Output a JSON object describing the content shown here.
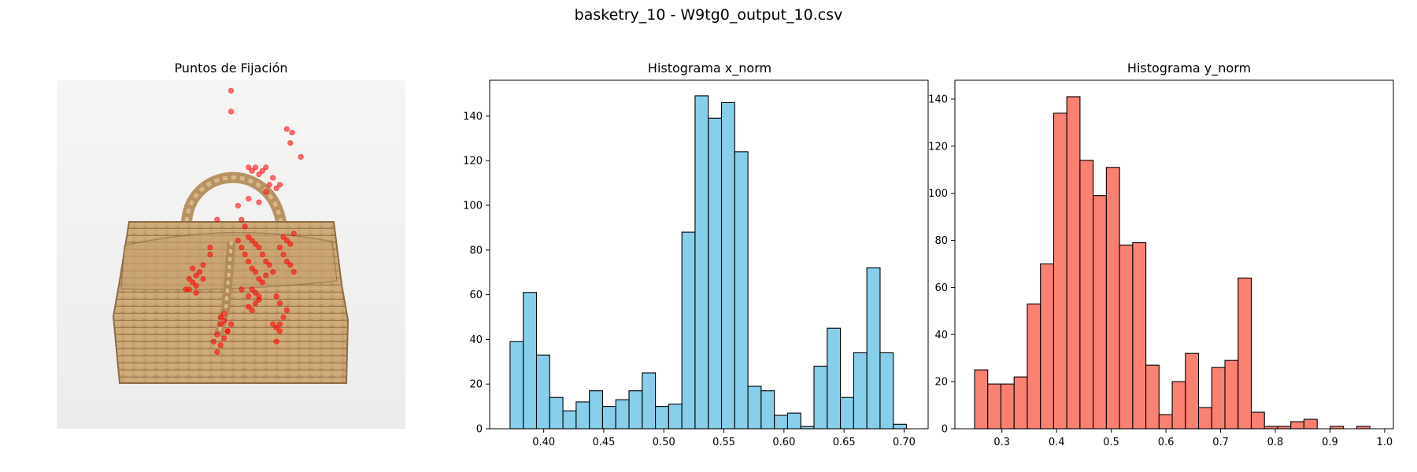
{
  "figure": {
    "suptitle": "basketry_10 - W9tg0_output_10.csv"
  },
  "panels": {
    "fixation_title": "Puntos de Fijación",
    "hist_x_title": "Histograma x_norm",
    "hist_y_title": "Histograma y_norm"
  },
  "colors": {
    "hist_x_fill": "#87CEEB",
    "hist_y_fill": "#FA8072",
    "fixation_point": "#FF0000",
    "bar_edge": "#000000"
  },
  "chart_data": [
    {
      "type": "bar",
      "title": "Histograma x_norm",
      "bin_start": 0.372,
      "bin_width": 0.011,
      "values": [
        39,
        61,
        33,
        14,
        8,
        12,
        17,
        10,
        13,
        17,
        25,
        10,
        11,
        88,
        149,
        139,
        146,
        124,
        19,
        17,
        6,
        7,
        1,
        28,
        45,
        14,
        34,
        72,
        34,
        2
      ],
      "xlim": [
        0.355,
        0.72
      ],
      "ylim": [
        0,
        156
      ],
      "xticks": [
        0.4,
        0.45,
        0.5,
        0.55,
        0.6,
        0.65,
        0.7
      ],
      "xtick_labels": [
        "0.40",
        "0.45",
        "0.50",
        "0.55",
        "0.60",
        "0.65",
        "0.70"
      ],
      "yticks": [
        0,
        20,
        40,
        60,
        80,
        100,
        120,
        140
      ],
      "ytick_labels": [
        "0",
        "20",
        "40",
        "60",
        "80",
        "100",
        "120",
        "140"
      ],
      "grid": false
    },
    {
      "type": "bar",
      "title": "Histograma y_norm",
      "bin_start": 0.25,
      "bin_width": 0.0241,
      "values": [
        25,
        19,
        19,
        22,
        53,
        70,
        134,
        141,
        114,
        99,
        111,
        78,
        79,
        27,
        6,
        20,
        32,
        9,
        26,
        29,
        64,
        7,
        1,
        1,
        3,
        4,
        0,
        1,
        0,
        1
      ],
      "xlim": [
        0.214,
        1.016
      ],
      "ylim": [
        0,
        148
      ],
      "xticks": [
        0.3,
        0.4,
        0.5,
        0.6,
        0.7,
        0.8,
        0.9,
        1.0
      ],
      "xtick_labels": [
        "0.3",
        "0.4",
        "0.5",
        "0.6",
        "0.7",
        "0.8",
        "0.9",
        "1.0"
      ],
      "yticks": [
        0,
        20,
        40,
        60,
        80,
        100,
        120,
        140
      ],
      "ytick_labels": [
        "0",
        "20",
        "40",
        "60",
        "80",
        "100",
        "120",
        "140"
      ],
      "grid": false
    },
    {
      "type": "scatter",
      "title": "Puntos de Fijación",
      "x": [
        0.5,
        0.5,
        0.66,
        0.675,
        0.67,
        0.7,
        0.55,
        0.56,
        0.57,
        0.58,
        0.59,
        0.6,
        0.62,
        0.64,
        0.6,
        0.61,
        0.63,
        0.58,
        0.55,
        0.52,
        0.53,
        0.54,
        0.55,
        0.56,
        0.57,
        0.58,
        0.59,
        0.6,
        0.61,
        0.62,
        0.54,
        0.55,
        0.56,
        0.57,
        0.58,
        0.59,
        0.6,
        0.53,
        0.55,
        0.56,
        0.57,
        0.58,
        0.55,
        0.56,
        0.57,
        0.58,
        0.52,
        0.53,
        0.46,
        0.4,
        0.38,
        0.39,
        0.41,
        0.42,
        0.39,
        0.4,
        0.37,
        0.38,
        0.4,
        0.42,
        0.44,
        0.65,
        0.66,
        0.67,
        0.68,
        0.64,
        0.65,
        0.66,
        0.67,
        0.68,
        0.63,
        0.64,
        0.66,
        0.65,
        0.64,
        0.62,
        0.63,
        0.64,
        0.63,
        0.48,
        0.47,
        0.49,
        0.46,
        0.45,
        0.47,
        0.48,
        0.49,
        0.5,
        0.48,
        0.47,
        0.46,
        0.44
      ],
      "y": [
        0.03,
        0.09,
        0.14,
        0.15,
        0.18,
        0.22,
        0.25,
        0.26,
        0.25,
        0.27,
        0.26,
        0.25,
        0.28,
        0.3,
        0.32,
        0.3,
        0.31,
        0.35,
        0.34,
        0.36,
        0.4,
        0.42,
        0.45,
        0.46,
        0.47,
        0.48,
        0.5,
        0.52,
        0.53,
        0.55,
        0.5,
        0.52,
        0.54,
        0.55,
        0.57,
        0.58,
        0.56,
        0.6,
        0.62,
        0.6,
        0.61,
        0.63,
        0.65,
        0.66,
        0.64,
        0.62,
        0.46,
        0.48,
        0.4,
        0.56,
        0.57,
        0.54,
        0.55,
        0.53,
        0.58,
        0.59,
        0.6,
        0.6,
        0.61,
        0.57,
        0.5,
        0.45,
        0.46,
        0.47,
        0.44,
        0.48,
        0.5,
        0.52,
        0.53,
        0.55,
        0.62,
        0.64,
        0.66,
        0.68,
        0.7,
        0.7,
        0.71,
        0.72,
        0.75,
        0.67,
        0.7,
        0.72,
        0.73,
        0.75,
        0.76,
        0.74,
        0.72,
        0.7,
        0.69,
        0.68,
        0.78,
        0.48
      ]
    }
  ]
}
